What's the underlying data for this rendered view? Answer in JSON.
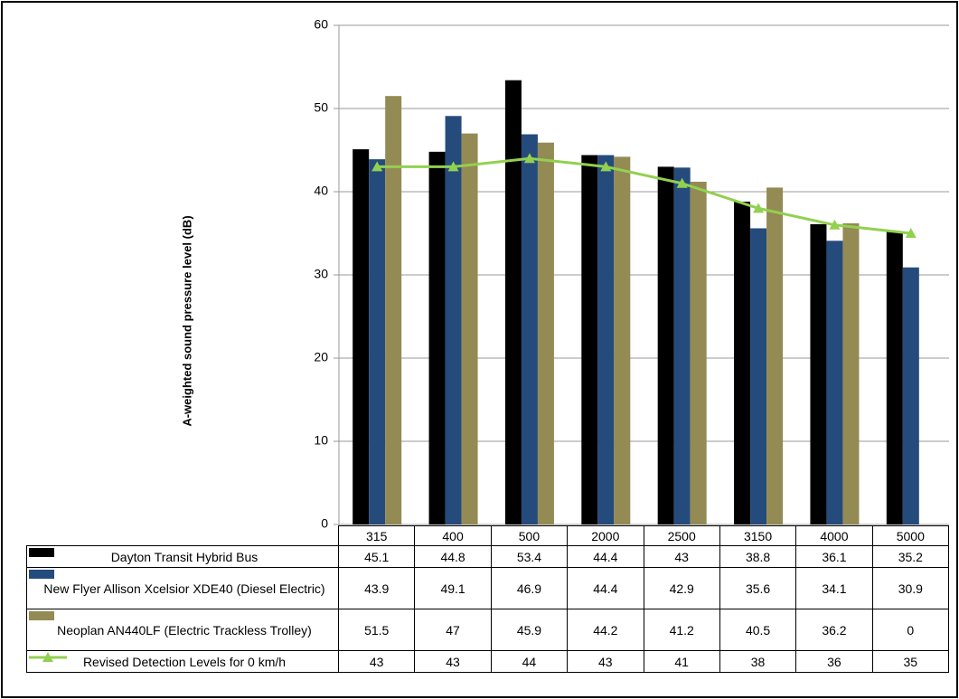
{
  "chart_data": {
    "type": "bar",
    "ylabel": "A-weighted sound pressure level (dB)",
    "categories": [
      "315",
      "400",
      "500",
      "2000",
      "2500",
      "3150",
      "4000",
      "5000"
    ],
    "series": [
      {
        "name": "Dayton Transit Hybrid Bus",
        "color": "#000000",
        "values": [
          45.1,
          44.8,
          53.4,
          44.4,
          43,
          38.8,
          36.1,
          35.2
        ]
      },
      {
        "name": "New Flyer Allison Xcelsior XDE40 (Diesel Electric)",
        "color": "#254b7c",
        "values": [
          43.9,
          49.1,
          46.9,
          44.4,
          42.9,
          35.6,
          34.1,
          30.9
        ]
      },
      {
        "name": "Neoplan AN440LF (Electric Trackless Trolley)",
        "color": "#948a54",
        "values": [
          51.5,
          47,
          45.9,
          44.2,
          41.2,
          40.5,
          36.2,
          0
        ]
      },
      {
        "name": "Revised Detection Levels for  0 km/h",
        "color": "#92d050",
        "type": "line",
        "values": [
          43,
          43,
          44,
          43,
          41,
          38,
          36,
          35
        ]
      }
    ],
    "ylim": [
      0,
      60
    ],
    "yticks": [
      0,
      10,
      20,
      30,
      40,
      50,
      60
    ],
    "grid": true
  }
}
